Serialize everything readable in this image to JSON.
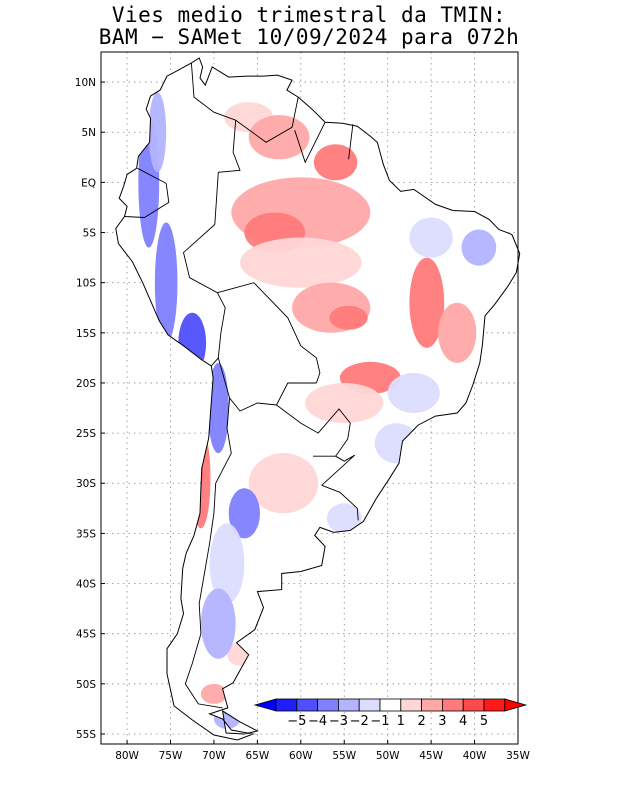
{
  "title": {
    "line1": "Vies medio trimestral da TMIN:",
    "line2": "BAM − SAMet 10/09/2024  para 072h"
  },
  "map": {
    "lon_range": [
      -83,
      -35
    ],
    "lat_range": [
      -56,
      13
    ],
    "x_ticks": [
      {
        "lon": -80,
        "label": "80W"
      },
      {
        "lon": -75,
        "label": "75W"
      },
      {
        "lon": -70,
        "label": "70W"
      },
      {
        "lon": -65,
        "label": "65W"
      },
      {
        "lon": -60,
        "label": "60W"
      },
      {
        "lon": -55,
        "label": "55W"
      },
      {
        "lon": -50,
        "label": "50W"
      },
      {
        "lon": -45,
        "label": "45W"
      },
      {
        "lon": -40,
        "label": "40W"
      },
      {
        "lon": -35,
        "label": "35W"
      }
    ],
    "y_ticks": [
      {
        "lat": 10,
        "label": "10N"
      },
      {
        "lat": 5,
        "label": "5N"
      },
      {
        "lat": 0,
        "label": "EQ"
      },
      {
        "lat": -5,
        "label": "5S"
      },
      {
        "lat": -10,
        "label": "10S"
      },
      {
        "lat": -15,
        "label": "15S"
      },
      {
        "lat": -20,
        "label": "20S"
      },
      {
        "lat": -25,
        "label": "25S"
      },
      {
        "lat": -30,
        "label": "30S"
      },
      {
        "lat": -35,
        "label": "35S"
      },
      {
        "lat": -40,
        "label": "40S"
      },
      {
        "lat": -45,
        "label": "45S"
      },
      {
        "lat": -50,
        "label": "50S"
      },
      {
        "lat": -55,
        "label": "55S"
      }
    ],
    "grid": "dotted"
  },
  "colorbar": {
    "labels": [
      "−5",
      "−4",
      "−3",
      "−2",
      "−1",
      "1",
      "2",
      "3",
      "4",
      "5"
    ],
    "colors": [
      "#1e1eff",
      "#4f4fff",
      "#8080ff",
      "#b3b3ff",
      "#dcdcff",
      "#ffffff",
      "#ffd6d6",
      "#ffa8a8",
      "#ff7a7a",
      "#ff4b4b",
      "#ff1a1a"
    ],
    "under_color": "#0000ff",
    "over_color": "#ff0000"
  },
  "regions": {
    "warm": [
      {
        "lon": -66,
        "lat": 6.5,
        "rx": 2.8,
        "ry": 1.5,
        "level": 1
      },
      {
        "lon": -62.5,
        "lat": 4.5,
        "rx": 3.5,
        "ry": 2.2,
        "level": 2
      },
      {
        "lon": -56,
        "lat": 2,
        "rx": 2.5,
        "ry": 1.8,
        "level": 3
      },
      {
        "lon": -60,
        "lat": -3,
        "rx": 8,
        "ry": 3.5,
        "level": 2
      },
      {
        "lon": -63,
        "lat": -5,
        "rx": 3.5,
        "ry": 2.0,
        "level": 3
      },
      {
        "lon": -60,
        "lat": -8,
        "rx": 7,
        "ry": 2.5,
        "level": 1
      },
      {
        "lon": -56.5,
        "lat": -12.5,
        "rx": 4.5,
        "ry": 2.5,
        "level": 2
      },
      {
        "lon": -54.5,
        "lat": -13.5,
        "rx": 2.2,
        "ry": 1.2,
        "level": 3
      },
      {
        "lon": -45.5,
        "lat": -12,
        "rx": 2.0,
        "ry": 4.5,
        "level": 3
      },
      {
        "lon": -42,
        "lat": -15,
        "rx": 2.2,
        "ry": 3.0,
        "level": 2
      },
      {
        "lon": -52,
        "lat": -19.5,
        "rx": 3.5,
        "ry": 1.6,
        "level": 3
      },
      {
        "lon": -55,
        "lat": -22,
        "rx": 4.5,
        "ry": 2.0,
        "level": 1
      },
      {
        "lon": -71.5,
        "lat": -29.5,
        "rx": 1.1,
        "ry": 5.0,
        "level": 3
      },
      {
        "lon": -71.8,
        "lat": -28.5,
        "rx": 0.5,
        "ry": 3.0,
        "level": 4
      },
      {
        "lon": -62,
        "lat": -30,
        "rx": 4.0,
        "ry": 3.0,
        "level": 1
      },
      {
        "lon": -70,
        "lat": -51,
        "rx": 1.5,
        "ry": 1.0,
        "level": 2
      },
      {
        "lon": -67,
        "lat": -47,
        "rx": 1.5,
        "ry": 1.2,
        "level": 1
      }
    ],
    "cold": [
      {
        "lon": -77.5,
        "lat": 0,
        "rx": 1.2,
        "ry": 6.5,
        "level": 3
      },
      {
        "lon": -76.5,
        "lat": 5,
        "rx": 1.0,
        "ry": 4.0,
        "level": 2
      },
      {
        "lon": -75.5,
        "lat": -10,
        "rx": 1.3,
        "ry": 6.0,
        "level": 3
      },
      {
        "lon": -72.5,
        "lat": -16,
        "rx": 1.6,
        "ry": 3.0,
        "level": 4
      },
      {
        "lon": -69.5,
        "lat": -22.5,
        "rx": 1.2,
        "ry": 4.5,
        "level": 3
      },
      {
        "lon": -66.5,
        "lat": -33,
        "rx": 1.8,
        "ry": 2.5,
        "level": 3
      },
      {
        "lon": -68.5,
        "lat": -38,
        "rx": 2.0,
        "ry": 4.0,
        "level": 1
      },
      {
        "lon": -69.5,
        "lat": -44,
        "rx": 2.0,
        "ry": 3.5,
        "level": 2
      },
      {
        "lon": -45,
        "lat": -5.5,
        "rx": 2.5,
        "ry": 2.0,
        "level": 1
      },
      {
        "lon": -39.5,
        "lat": -6.5,
        "rx": 2.0,
        "ry": 1.8,
        "level": 2
      },
      {
        "lon": -47,
        "lat": -21,
        "rx": 3.0,
        "ry": 2.0,
        "level": 1
      },
      {
        "lon": -49,
        "lat": -26,
        "rx": 2.5,
        "ry": 2.0,
        "level": 1
      },
      {
        "lon": -55,
        "lat": -33.5,
        "rx": 2.0,
        "ry": 1.5,
        "level": 1
      },
      {
        "lon": -68.5,
        "lat": -53.5,
        "rx": 1.5,
        "ry": 1.0,
        "level": 2
      }
    ]
  }
}
